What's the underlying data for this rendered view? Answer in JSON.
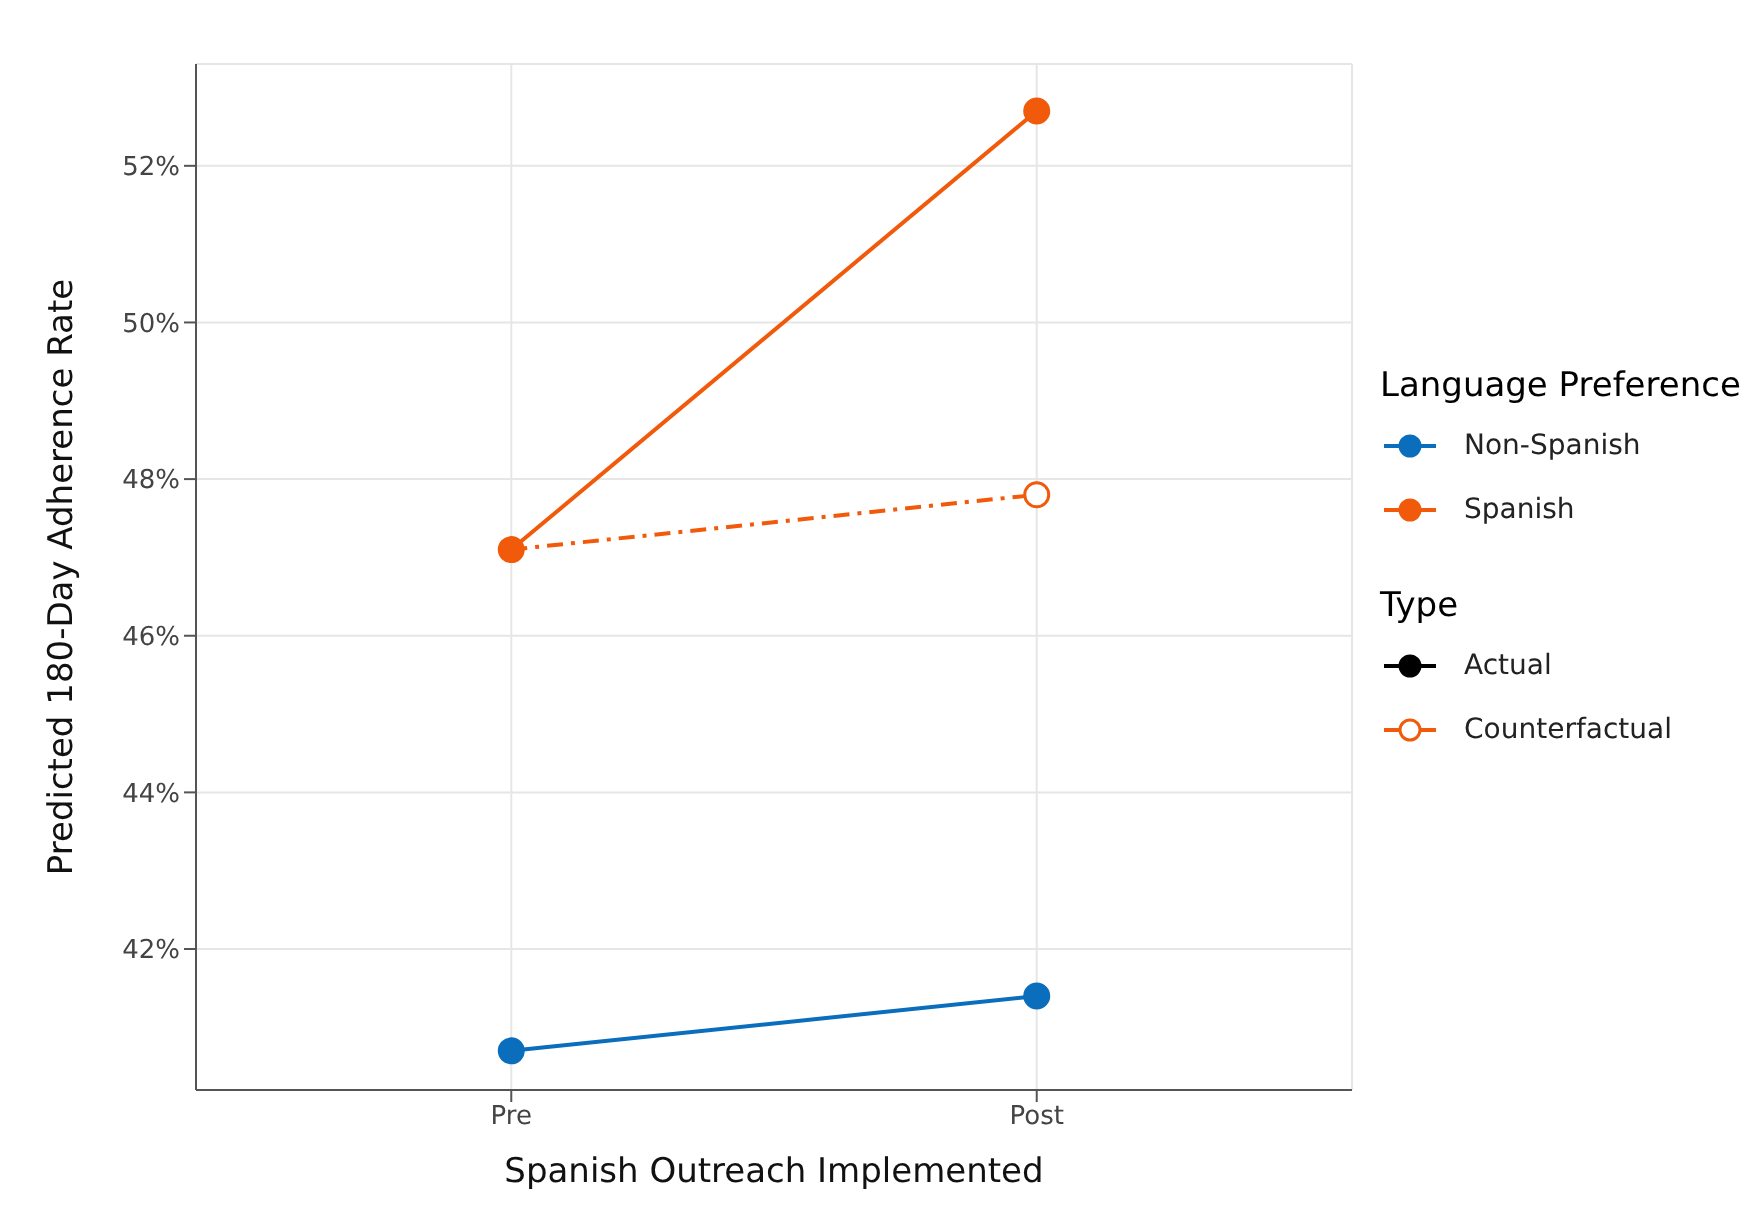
{
  "chart_data": {
    "type": "line",
    "xlabel": "Spanish Outreach Implemented",
    "ylabel": "Predicted 180-Day Adherence Rate",
    "categories": [
      "Pre",
      "Post"
    ],
    "series": [
      {
        "name": "Non-Spanish",
        "color": "#0a6ebd",
        "values": [
          40.7,
          41.4
        ],
        "marker": "circle",
        "line_style": "solid"
      },
      {
        "name": "Spanish",
        "color": "#f05a0a",
        "values": [
          47.1,
          52.7
        ],
        "marker": "circle",
        "line_style": "solid"
      },
      {
        "name": "Actual",
        "color": "#000000",
        "values": [
          null,
          null
        ],
        "marker": "circle",
        "line_style": "solid"
      },
      {
        "name": "Counterfactual",
        "color": "#f05a0a",
        "values": [
          47.1,
          47.8
        ],
        "marker": "circle",
        "line_style": "dashed"
      }
    ],
    "legend_title": "Language Preference",
    "annotations": [
      "Type"
    ],
    "ylim": [
      40.2,
      53.3
    ],
    "yticks": [
      {
        "value": 42,
        "label": "42%"
      },
      {
        "value": 44,
        "label": "44%"
      },
      {
        "value": 46,
        "label": "46%"
      },
      {
        "value": 48,
        "label": "48%"
      },
      {
        "value": 50,
        "label": "50%"
      },
      {
        "value": 52,
        "label": "52%"
      }
    ],
    "grid": true,
    "legend": "right"
  }
}
